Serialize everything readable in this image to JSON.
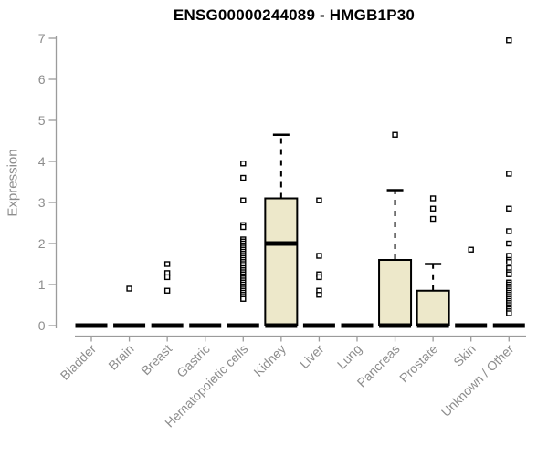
{
  "title": "ENSG00000244089 - HMGB1P30",
  "ylabel": "Expression",
  "colors": {
    "box_fill": "#EDE8CA",
    "box_border": "#000000",
    "axis_line": "#9b9b9b",
    "axis_text": "#8d8d8d",
    "title_text": "#000000",
    "background": "#ffffff"
  },
  "chart_data": {
    "type": "boxplot",
    "title": "ENSG00000244089 - HMGB1P30",
    "xlabel": "",
    "ylabel": "Expression",
    "ylim": [
      0,
      7
    ],
    "yticks": [
      0,
      1,
      2,
      3,
      4,
      5,
      6,
      7
    ],
    "grid": false,
    "categories": [
      "Bladder",
      "Brain",
      "Breast",
      "Gastric",
      "Hematopoietic cells",
      "Kidney",
      "Liver",
      "Lung",
      "Pancreas",
      "Prostate",
      "Skin",
      "Unknown / Other"
    ],
    "series": [
      {
        "label": "Bladder",
        "whisker_low": 0,
        "q1": 0,
        "median": 0,
        "q3": 0,
        "whisker_high": 0,
        "outliers": []
      },
      {
        "label": "Brain",
        "whisker_low": 0,
        "q1": 0,
        "median": 0,
        "q3": 0,
        "whisker_high": 0,
        "outliers": [
          0.9
        ]
      },
      {
        "label": "Breast",
        "whisker_low": 0,
        "q1": 0,
        "median": 0,
        "q3": 0,
        "whisker_high": 0,
        "outliers": [
          1.5,
          1.28,
          1.18,
          0.85
        ]
      },
      {
        "label": "Gastric",
        "whisker_low": 0,
        "q1": 0,
        "median": 0,
        "q3": 0,
        "whisker_high": 0,
        "outliers": []
      },
      {
        "label": "Hematopoietic cells",
        "whisker_low": 0,
        "q1": 0,
        "median": 0,
        "q3": 0,
        "whisker_high": 0,
        "outliers": [
          3.95,
          3.6,
          3.05,
          2.45,
          2.4,
          2.1,
          2.05,
          2.0,
          1.95,
          1.9,
          1.85,
          1.8,
          1.75,
          1.7,
          1.65,
          1.6,
          1.55,
          1.5,
          1.45,
          1.4,
          1.35,
          1.3,
          1.25,
          1.2,
          1.15,
          1.1,
          1.05,
          1.0,
          0.95,
          0.9,
          0.85,
          0.8,
          0.75,
          0.7,
          0.65
        ]
      },
      {
        "label": "Kidney",
        "whisker_low": 0,
        "q1": 0,
        "median": 2.0,
        "q3": 3.1,
        "whisker_high": 4.65,
        "outliers": []
      },
      {
        "label": "Liver",
        "whisker_low": 0,
        "q1": 0,
        "median": 0,
        "q3": 0,
        "whisker_high": 0,
        "outliers": [
          3.05,
          1.7,
          1.25,
          1.18,
          0.85,
          0.75
        ]
      },
      {
        "label": "Lung",
        "whisker_low": 0,
        "q1": 0,
        "median": 0,
        "q3": 0,
        "whisker_high": 0,
        "outliers": []
      },
      {
        "label": "Pancreas",
        "whisker_low": 0,
        "q1": 0,
        "median": 0,
        "q3": 1.6,
        "whisker_high": 3.3,
        "outliers": [
          4.65
        ]
      },
      {
        "label": "Prostate",
        "whisker_low": 0,
        "q1": 0,
        "median": 0,
        "q3": 0.85,
        "whisker_high": 1.5,
        "outliers": [
          3.1,
          2.85,
          2.6
        ]
      },
      {
        "label": "Skin",
        "whisker_low": 0,
        "q1": 0,
        "median": 0,
        "q3": 0,
        "whisker_high": 0,
        "outliers": [
          1.85
        ]
      },
      {
        "label": "Unknown / Other",
        "whisker_low": 0,
        "q1": 0,
        "median": 0,
        "q3": 0,
        "whisker_high": 0,
        "outliers": [
          6.95,
          3.7,
          2.85,
          2.3,
          2.0,
          1.7,
          1.6,
          1.55,
          1.4,
          1.3,
          1.25,
          1.05,
          1.0,
          0.95,
          0.9,
          0.85,
          0.8,
          0.75,
          0.7,
          0.65,
          0.6,
          0.55,
          0.5,
          0.45,
          0.4,
          0.35,
          0.3
        ]
      }
    ]
  }
}
